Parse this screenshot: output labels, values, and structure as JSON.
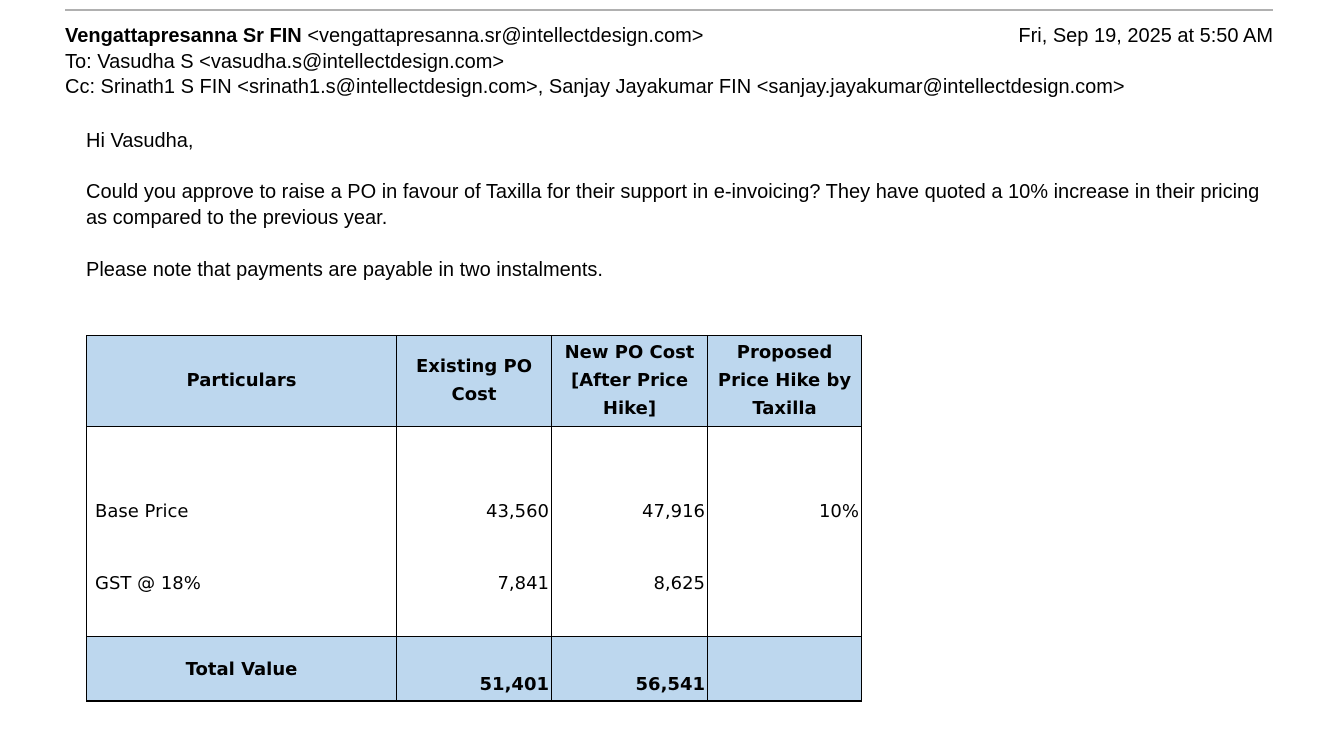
{
  "email": {
    "from": {
      "name": "Vengattapresanna Sr FIN",
      "email": "<vengattapresanna.sr@intellectdesign.com>"
    },
    "date": "Fri, Sep 19, 2025 at 5:50 AM",
    "to": "To: Vasudha S <vasudha.s@intellectdesign.com>",
    "cc": "Cc: Srinath1 S FIN <srinath1.s@intellectdesign.com>, Sanjay Jayakumar FIN <sanjay.jayakumar@intellectdesign.com>",
    "body": [
      "Hi Vasudha,",
      "Could you approve to raise a PO in favour of Taxilla for their support in e-invoicing? They have quoted a 10% increase in their pricing as compared to the previous year.",
      "Please note that payments are payable in two instalments."
    ]
  },
  "table": {
    "header": [
      "Particulars",
      "Existing PO Cost",
      "New PO Cost [After Price Hike]",
      "Proposed Price Hike by Taxilla"
    ],
    "rows": [
      [
        "Base Price",
        "43,560",
        "47,916",
        "10%"
      ],
      [
        "GST @ 18%",
        "7,841",
        "8,625",
        ""
      ]
    ],
    "total": [
      "Total Value",
      "51,401",
      "56,541",
      ""
    ]
  }
}
